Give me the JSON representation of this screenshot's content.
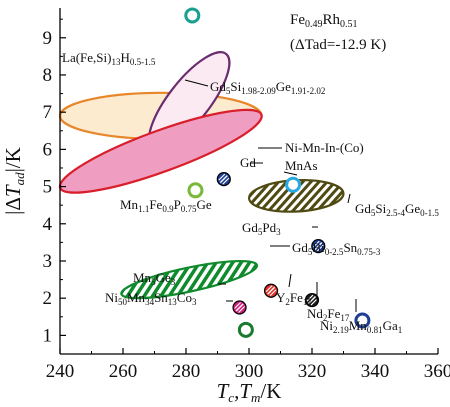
{
  "chart_data": {
    "type": "scatter",
    "xlabel": "Tc,Tm/K",
    "ylabel": "|ΔTad|/K",
    "xlim": [
      240,
      360
    ],
    "ylim": [
      0.5,
      9.8
    ],
    "x_ticks": [
      "240",
      "260",
      "280",
      "300",
      "320",
      "340",
      "360"
    ],
    "y_ticks": [
      "1",
      "2",
      "3",
      "4",
      "5",
      "6",
      "7",
      "8",
      "9"
    ],
    "regions": [
      {
        "name": "La(Fe,Si)13H0.5-1.5",
        "cx": 272,
        "cy": 6.9,
        "rx": 32,
        "ry": 0.62,
        "angle": 0,
        "fill": "#fdebd0",
        "stroke": "#e8862a",
        "pattern": "solid"
      },
      {
        "name": "Gd5Si1.98-2.09Ge1.91-2.02",
        "cx": 281,
        "cy": 7.3,
        "rx": 19,
        "ry": 0.55,
        "angle": -52,
        "fill": "#fbeaf2",
        "stroke": "#6a2c6e",
        "pattern": "solid"
      },
      {
        "name": "Ni-Mn-In-(Co)",
        "cx": 272,
        "cy": 5.95,
        "rx": 34,
        "ry": 0.55,
        "angle": -20,
        "fill": "#ef9ec1",
        "stroke": "#d81f2b",
        "pattern": "solid"
      },
      {
        "name": "Gd5Si2.5-4Ge0-1.5",
        "cx": 315,
        "cy": 4.75,
        "rx": 15,
        "ry": 0.42,
        "angle": -3,
        "fill": "#ffffff",
        "stroke": "#4f4a12",
        "pattern": "hatch-olive"
      },
      {
        "name": "Gd5Bi0-2.5Sn0.75-3",
        "cx": 281,
        "cy": 2.5,
        "rx": 22,
        "ry": 0.32,
        "angle": -12,
        "fill": "#ffffff",
        "stroke": "#0f8a2c",
        "pattern": "hatch-green"
      }
    ],
    "points": [
      {
        "name": "Fe0.49Rh0.51",
        "x": 282,
        "y": 9.6,
        "color": "#1aa08f",
        "style": "ring"
      },
      {
        "name": "Gd",
        "x": 292,
        "y": 5.2,
        "color": "#1e3f95",
        "style": "hatch"
      },
      {
        "name": "MnAs",
        "x": 314,
        "y": 5.05,
        "color": "#29a9e1",
        "style": "ring"
      },
      {
        "name": "Mn1.1Fe0.9P0.75Ge",
        "x": 283,
        "y": 4.9,
        "color": "#79b93a",
        "style": "ring"
      },
      {
        "name": "Gd5Pd3",
        "x": 322,
        "y": 3.4,
        "color": "#1e3f95",
        "style": "hatch"
      },
      {
        "name": "Mn5Ge3",
        "x": 297,
        "y": 1.75,
        "color": "#d11d7c",
        "style": "hatch"
      },
      {
        "name": "Y2Fe17",
        "x": 307,
        "y": 2.2,
        "color": "#e03128",
        "style": "hatch"
      },
      {
        "name": "Nd2Fe17",
        "x": 320,
        "y": 1.95,
        "color": "#1a1a1a",
        "style": "hatch"
      },
      {
        "name": "Ni50Mn34Sn13Co3",
        "x": 299,
        "y": 1.15,
        "color": "#1a7a2e",
        "style": "ring"
      },
      {
        "name": "Ni2.19Mn0.81Ga1",
        "x": 336,
        "y": 1.4,
        "color": "#1e3f95",
        "style": "ring"
      }
    ],
    "annotations": {
      "fe_rh_dtad": "(ΔTad=-12.9 K)"
    },
    "grid": false,
    "legend": "none"
  }
}
